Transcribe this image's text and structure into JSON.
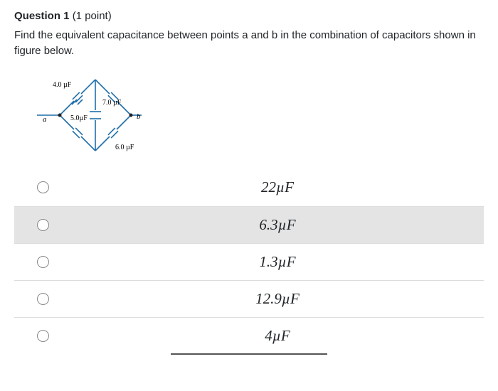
{
  "question": {
    "label_bold": "Question 1",
    "points": "(1 point)",
    "prompt": "Find the equivalent capacitance between points a and b in the combination of capacitors shown in figure below."
  },
  "circuit": {
    "labels": {
      "top_left": "4.0 µF",
      "top_right": "7.0 µF",
      "middle": "5.0µF",
      "bottom_right": "6.0 µF",
      "node_a": "a",
      "node_b": "b"
    },
    "style": {
      "line_color": "#1e6ea8",
      "cap_color": "#1e6ea8",
      "figure_width": 180,
      "figure_height": 130
    }
  },
  "answers": [
    {
      "text": "22µF",
      "highlighted": false
    },
    {
      "text": "6.3µF",
      "highlighted": true
    },
    {
      "text": "1.3µF",
      "highlighted": false
    },
    {
      "text": "12.9µF",
      "highlighted": false
    },
    {
      "text": "4µF",
      "highlighted": false
    }
  ]
}
